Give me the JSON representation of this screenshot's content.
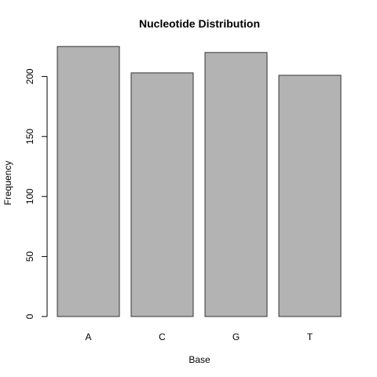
{
  "chart_data": {
    "type": "bar",
    "title": "Nucleotide Distribution",
    "xlabel": "Base",
    "ylabel": "Frequency",
    "categories": [
      "A",
      "C",
      "G",
      "T"
    ],
    "values": [
      225,
      203,
      220,
      201
    ],
    "ylim": [
      0,
      225
    ],
    "yticks": [
      0,
      50,
      100,
      150,
      200
    ],
    "bar_color": "#b3b3b3",
    "bar_border_color": "#333333",
    "grid": false,
    "legend": "none"
  }
}
